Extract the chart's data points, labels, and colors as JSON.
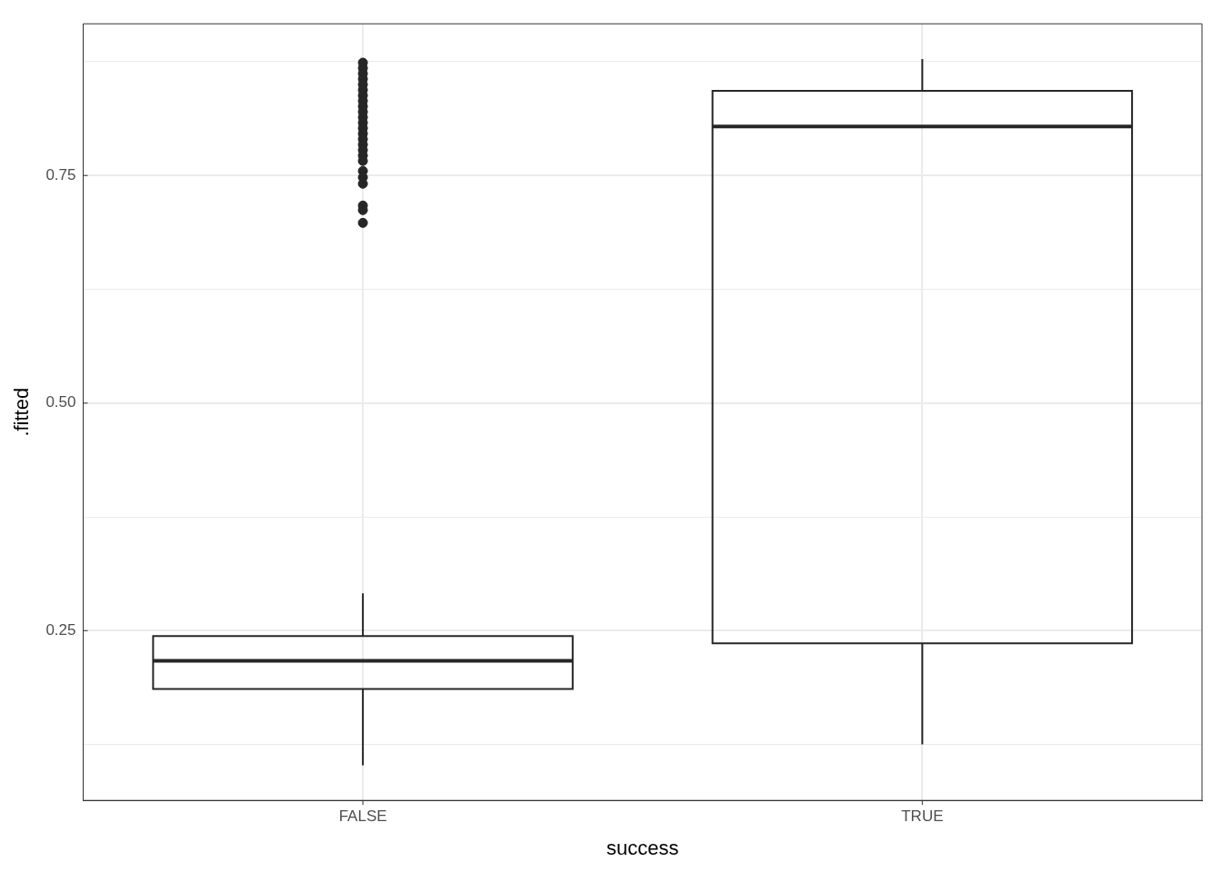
{
  "chart_data": {
    "type": "box",
    "xlabel": "success",
    "ylabel": ".fitted",
    "categories": [
      "FALSE",
      "TRUE"
    ],
    "color": "#262626",
    "boxes": [
      {
        "low": 0.102,
        "q1": 0.186,
        "median": 0.217,
        "q3": 0.244,
        "high": 0.291,
        "outliers": [
          0.874,
          0.868,
          0.862,
          0.856,
          0.85,
          0.844,
          0.838,
          0.832,
          0.826,
          0.82,
          0.814,
          0.808,
          0.802,
          0.796,
          0.79,
          0.784,
          0.778,
          0.772,
          0.766,
          0.755,
          0.748,
          0.741,
          0.717,
          0.712,
          0.698
        ]
      },
      {
        "low": 0.125,
        "q1": 0.236,
        "median": 0.804,
        "q3": 0.843,
        "high": 0.878
      }
    ],
    "ylim": [
      0.0635,
      0.9167
    ],
    "yticks": [
      {
        "value": 0.125,
        "label": null
      },
      0.25,
      {
        "value": 0.375,
        "label": null
      },
      {
        "value": 0.5,
        "label": "0.50"
      },
      {
        "value": 0.625,
        "label": null
      },
      0.75,
      {
        "value": 0.875,
        "label": null
      }
    ],
    "grid": true
  }
}
